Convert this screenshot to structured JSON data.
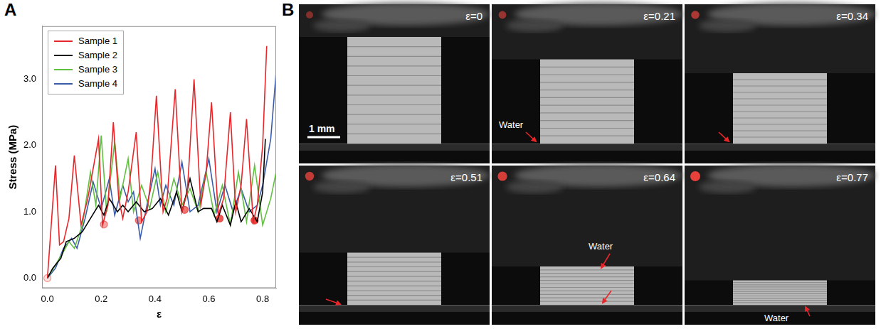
{
  "panel_labels": [
    "A",
    "B"
  ],
  "chart_data": {
    "type": "line",
    "x_label": "ε",
    "y_label": "Stress (MPa)",
    "xlim": [
      -0.02,
      0.85
    ],
    "ylim": [
      -0.15,
      3.8
    ],
    "xticks": [
      {
        "value": 0,
        "label": "0.0"
      },
      {
        "value": 0.2,
        "label": "0.2"
      },
      {
        "value": 0.4,
        "label": "0.4"
      },
      {
        "value": 0.6,
        "label": "0.6"
      },
      {
        "value": 0.8,
        "label": "0.8"
      }
    ],
    "yticks": [
      {
        "value": 0,
        "label": "0.0"
      },
      {
        "value": 1,
        "label": "1.0"
      },
      {
        "value": 2,
        "label": "2.0"
      },
      {
        "value": 3,
        "label": "3.0"
      }
    ],
    "grid": false,
    "legend": "upper left",
    "series": [
      {
        "name": "Sample 1",
        "color": "#e8262a",
        "x": [
          0,
          0.03,
          0.045,
          0.06,
          0.08,
          0.1,
          0.125,
          0.15,
          0.19,
          0.205,
          0.225,
          0.245,
          0.265,
          0.28,
          0.3,
          0.33,
          0.35,
          0.37,
          0.385,
          0.405,
          0.43,
          0.445,
          0.475,
          0.5,
          0.52,
          0.545,
          0.57,
          0.59,
          0.61,
          0.635,
          0.655,
          0.68,
          0.7,
          0.72,
          0.74,
          0.765,
          0.78,
          0.8,
          0.815
        ],
        "values": [
          0,
          1.7,
          0.5,
          0.55,
          0.9,
          1.85,
          0.8,
          1.2,
          2.1,
          0.8,
          1.1,
          2.35,
          1.2,
          0.9,
          1.3,
          2.2,
          0.85,
          1.0,
          1.5,
          2.75,
          1.0,
          1.2,
          2.85,
          1.0,
          1.3,
          3.0,
          1.1,
          1.6,
          2.65,
          0.95,
          1.2,
          2.5,
          1.0,
          1.4,
          2.4,
          0.85,
          1.1,
          2.0,
          3.5
        ]
      },
      {
        "name": "Sample 2",
        "color": "#000000",
        "x": [
          0,
          0.02,
          0.05,
          0.07,
          0.1,
          0.13,
          0.16,
          0.19,
          0.21,
          0.23,
          0.26,
          0.28,
          0.3,
          0.33,
          0.36,
          0.39,
          0.42,
          0.45,
          0.48,
          0.5,
          0.53,
          0.56,
          0.58,
          0.61,
          0.63,
          0.65,
          0.68,
          0.7,
          0.72,
          0.75,
          0.78,
          0.8,
          0.81
        ],
        "values": [
          0,
          0.15,
          0.3,
          0.55,
          0.6,
          0.7,
          0.9,
          1.1,
          0.95,
          1.2,
          1.0,
          1.1,
          1.0,
          1.15,
          1.0,
          1.05,
          1.2,
          0.95,
          1.3,
          1.0,
          1.5,
          1.0,
          1.05,
          1.05,
          0.85,
          1.1,
          0.8,
          1.15,
          0.85,
          1.05,
          0.85,
          1.3,
          2.1
        ]
      },
      {
        "name": "Sample 3",
        "color": "#62c040",
        "x": [
          0,
          0.03,
          0.06,
          0.08,
          0.1,
          0.13,
          0.16,
          0.18,
          0.2,
          0.22,
          0.25,
          0.27,
          0.3,
          0.32,
          0.35,
          0.38,
          0.41,
          0.44,
          0.47,
          0.5,
          0.53,
          0.56,
          0.59,
          0.62,
          0.65,
          0.68,
          0.71,
          0.74,
          0.77,
          0.8,
          0.83,
          0.85
        ],
        "values": [
          0,
          0.2,
          0.4,
          0.55,
          0.45,
          0.8,
          1.6,
          1.1,
          2.15,
          1.0,
          2.05,
          1.2,
          1.8,
          1.0,
          1.4,
          1.05,
          1.6,
          1.0,
          1.5,
          1.1,
          1.35,
          1.0,
          1.6,
          0.95,
          1.4,
          0.8,
          1.6,
          0.85,
          1.7,
          0.8,
          1.2,
          1.6
        ]
      },
      {
        "name": "Sample 4",
        "color": "#3a5ba8",
        "x": [
          0,
          0.03,
          0.06,
          0.09,
          0.11,
          0.14,
          0.17,
          0.2,
          0.23,
          0.25,
          0.28,
          0.3,
          0.32,
          0.345,
          0.37,
          0.4,
          0.42,
          0.44,
          0.47,
          0.5,
          0.53,
          0.56,
          0.6,
          0.63,
          0.66,
          0.69,
          0.72,
          0.75,
          0.78,
          0.8,
          0.83,
          0.85
        ],
        "values": [
          0,
          0.15,
          0.45,
          0.6,
          0.45,
          0.9,
          1.45,
          1.05,
          1.5,
          0.95,
          1.4,
          1.15,
          1.3,
          0.6,
          1.1,
          1.65,
          1.1,
          1.4,
          1.1,
          1.75,
          1.0,
          1.1,
          1.8,
          1.0,
          1.4,
          1.0,
          1.35,
          1.0,
          1.1,
          1.4,
          2.1,
          3.1
        ]
      }
    ],
    "markers": {
      "color": "#e8413c",
      "x": [
        0,
        0.21,
        0.34,
        0.51,
        0.64,
        0.77
      ],
      "values": [
        0,
        0.81,
        0.87,
        1.03,
        0.9,
        0.87
      ]
    }
  },
  "panel_b": {
    "scale_bar": "1 mm",
    "marker_color": "#e8413c",
    "frames": [
      {
        "label": "ε=0",
        "strain": 0,
        "annotations": []
      },
      {
        "label": "ε=0.21",
        "strain": 0.21,
        "annotations": [
          "Water"
        ]
      },
      {
        "label": "ε=0.34",
        "strain": 0.34,
        "annotations": []
      },
      {
        "label": "ε=0.51",
        "strain": 0.51,
        "annotations": []
      },
      {
        "label": "ε=0.64",
        "strain": 0.64,
        "annotations": [
          "Water"
        ]
      },
      {
        "label": "ε=0.77",
        "strain": 0.77,
        "annotations": [
          "Water"
        ]
      }
    ]
  }
}
